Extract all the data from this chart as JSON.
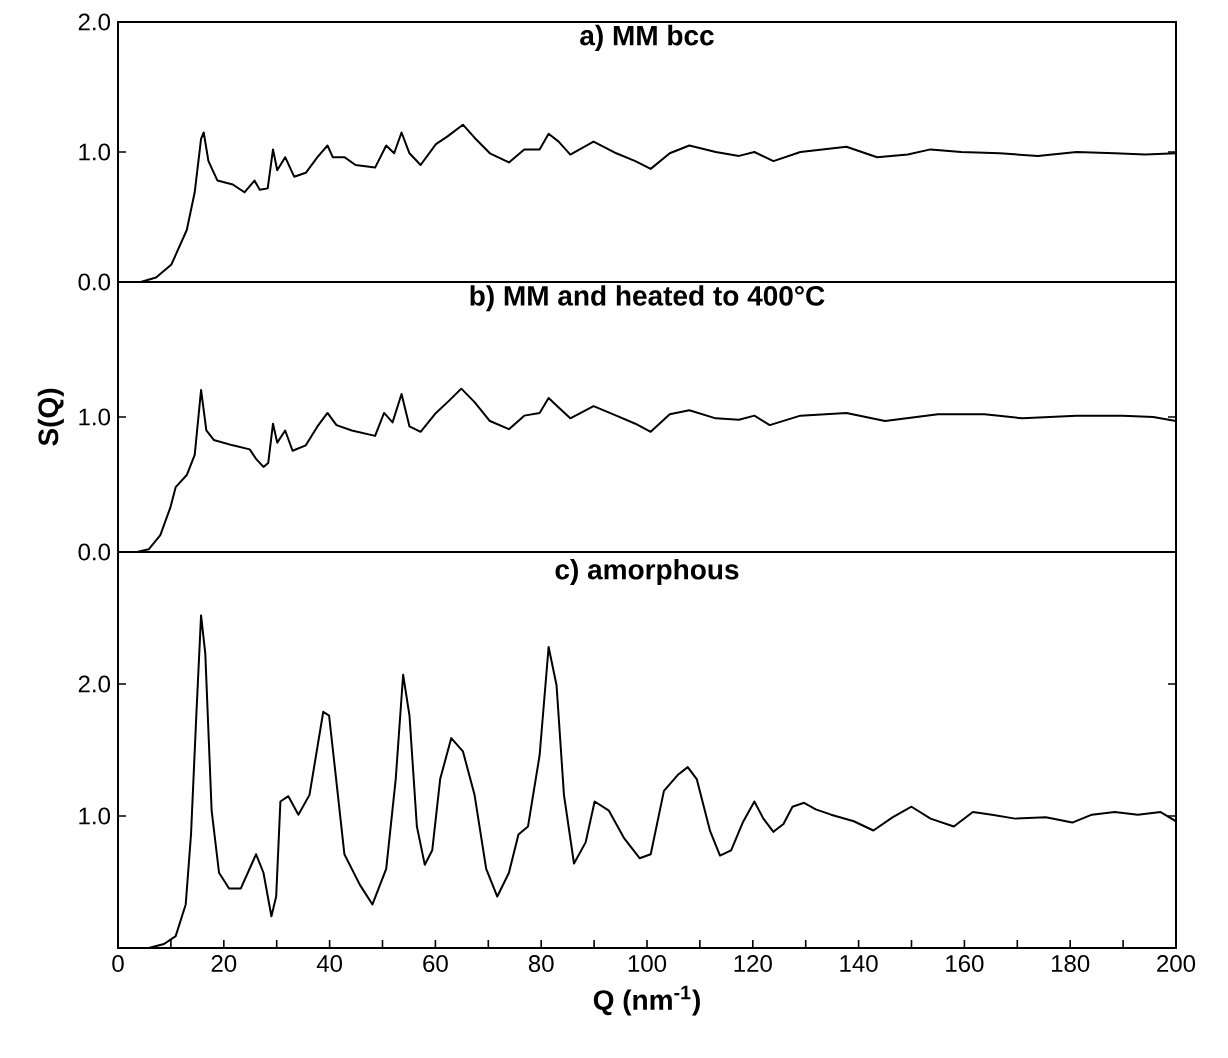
{
  "chart_data": [
    {
      "type": "line",
      "title": "a) MM bcc",
      "xlim": [
        0,
        200
      ],
      "ylim": [
        0,
        2
      ],
      "yticks": [
        {
          "value": 0,
          "label": "0.0"
        },
        {
          "value": 1,
          "label": "1.0"
        },
        {
          "value": 2,
          "label": "2.0"
        }
      ],
      "tick_labels": "y",
      "series": [
        {
          "color": "#000000",
          "x": [
            4.3,
            7.2,
            10.1,
            13,
            14.5,
            15.7,
            16.2,
            17.1,
            18.8,
            21.7,
            23.9,
            25.8,
            26.8,
            28.3,
            29.3,
            30.1,
            31.6,
            33.3,
            35.5,
            37.7,
            39.6,
            40.6,
            42.8,
            44.9,
            48.6,
            50.7,
            52.2,
            53.6,
            55.1,
            57.2,
            60.1,
            62.3,
            65.2,
            67.4,
            70.3,
            73.9,
            76.8,
            79.7,
            81.4,
            83.3,
            85.5,
            89.9,
            94.2,
            97.8,
            100.7,
            104.3,
            108,
            113,
            117.4,
            120.3,
            123.9,
            129,
            137.7,
            143.5,
            149.3,
            153.6,
            159.4,
            166.7,
            173.9,
            181.2,
            188.4,
            194.2,
            200
          ],
          "values": [
            0,
            0.035,
            0.135,
            0.4,
            0.69,
            1.1,
            1.15,
            0.93,
            0.78,
            0.75,
            0.69,
            0.78,
            0.71,
            0.72,
            1.02,
            0.86,
            0.96,
            0.81,
            0.84,
            0.96,
            1.05,
            0.96,
            0.96,
            0.9,
            0.88,
            1.05,
            0.99,
            1.15,
            0.99,
            0.9,
            1.06,
            1.12,
            1.21,
            1.11,
            0.99,
            0.92,
            1.02,
            1.02,
            1.14,
            1.08,
            0.98,
            1.08,
            0.99,
            0.93,
            0.87,
            0.99,
            1.05,
            1.0,
            0.97,
            1.0,
            0.93,
            1.0,
            1.04,
            0.96,
            0.98,
            1.02,
            1.0,
            0.99,
            0.97,
            1.0,
            0.99,
            0.98,
            0.99
          ]
        }
      ]
    },
    {
      "type": "line",
      "title": "b) MM and heated to 400°C",
      "ylabel": "S(Q)",
      "xlim": [
        0,
        200
      ],
      "ylim": [
        0,
        2
      ],
      "yticks": [
        {
          "value": 0,
          "label": "0.0"
        },
        {
          "value": 1,
          "label": "1.0"
        }
      ],
      "tick_labels": "y",
      "series": [
        {
          "color": "#000000",
          "x": [
            3.6,
            5.8,
            8,
            9.9,
            10.9,
            13,
            14.5,
            15.7,
            16.7,
            18.1,
            21.7,
            24.9,
            26.1,
            27.5,
            28.4,
            29.3,
            30.1,
            31.6,
            33,
            35.5,
            37.7,
            39.6,
            41.3,
            44.2,
            48.6,
            50.3,
            51.9,
            53.6,
            55.1,
            57.2,
            60.1,
            62.3,
            64.9,
            67.4,
            70.3,
            73.9,
            76.8,
            79.7,
            81.4,
            83.3,
            85.5,
            89.9,
            94.2,
            97.8,
            100.7,
            104.3,
            108,
            113,
            117.4,
            120.3,
            123.2,
            129,
            137.7,
            145,
            155,
            163.8,
            171,
            181.2,
            189.9,
            195.7,
            200
          ],
          "values": [
            0,
            0.02,
            0.125,
            0.33,
            0.48,
            0.57,
            0.72,
            1.2,
            0.9,
            0.83,
            0.79,
            0.76,
            0.69,
            0.63,
            0.66,
            0.95,
            0.81,
            0.9,
            0.75,
            0.79,
            0.93,
            1.03,
            0.94,
            0.9,
            0.86,
            1.03,
            0.96,
            1.17,
            0.93,
            0.89,
            1.03,
            1.11,
            1.21,
            1.11,
            0.97,
            0.91,
            1.01,
            1.03,
            1.14,
            1.07,
            0.99,
            1.08,
            1.01,
            0.95,
            0.89,
            1.02,
            1.05,
            0.99,
            0.98,
            1.01,
            0.94,
            1.01,
            1.03,
            0.97,
            1.02,
            1.02,
            0.99,
            1.01,
            1.01,
            1.0,
            0.97
          ]
        }
      ]
    },
    {
      "type": "line",
      "title": "c) amorphous",
      "xlabel": "Q (nm$^{-1}$)",
      "xlim": [
        0,
        200
      ],
      "ylim": [
        0,
        3
      ],
      "xticks": [
        0,
        {
          "value": 10,
          "label": null
        },
        20,
        {
          "value": 30,
          "label": null
        },
        40,
        {
          "value": 50,
          "label": null
        },
        60,
        {
          "value": 70,
          "label": null
        },
        80,
        {
          "value": 90,
          "label": null
        },
        100,
        {
          "value": 110,
          "label": null
        },
        120,
        {
          "value": 130,
          "label": null
        },
        140,
        {
          "value": 150,
          "label": null
        },
        160,
        {
          "value": 170,
          "label": null
        },
        180,
        {
          "value": 190,
          "label": null
        },
        200
      ],
      "yticks": [
        {
          "value": 1,
          "label": "1.0"
        },
        {
          "value": 2,
          "label": "2.0"
        }
      ],
      "series": [
        {
          "color": "#000000",
          "x": [
            5.8,
            8.7,
            10.9,
            12.8,
            13.8,
            14.8,
            15.7,
            16.5,
            17.7,
            19.1,
            21,
            23.2,
            26.1,
            27.5,
            29,
            29.9,
            30.7,
            32.2,
            34.1,
            36.2,
            38.8,
            39.9,
            40.9,
            42.8,
            45.7,
            48.1,
            50.7,
            52.5,
            53.9,
            55.1,
            56.5,
            58,
            59.4,
            60.9,
            63,
            65.2,
            67.4,
            69.6,
            71.7,
            73.9,
            75.7,
            77.5,
            79.7,
            81.4,
            82.9,
            84.3,
            86.2,
            88.4,
            90.1,
            92.8,
            95.7,
            98.6,
            100.7,
            103.2,
            105.8,
            107.7,
            109.4,
            111.9,
            113.8,
            115.9,
            118.1,
            120.3,
            122,
            123.9,
            125.8,
            127.5,
            129.7,
            131.9,
            134.8,
            139.1,
            142.8,
            146.4,
            150,
            153.6,
            158,
            161.6,
            165.2,
            169.6,
            175.4,
            180.4,
            184.1,
            188.4,
            192.8,
            197.1,
            200
          ],
          "values": [
            0,
            0.03,
            0.09,
            0.33,
            0.86,
            1.76,
            2.52,
            2.23,
            1.04,
            0.57,
            0.45,
            0.45,
            0.71,
            0.57,
            0.24,
            0.39,
            1.11,
            1.15,
            1.01,
            1.16,
            1.79,
            1.76,
            1.4,
            0.71,
            0.48,
            0.33,
            0.6,
            1.28,
            2.07,
            1.76,
            0.92,
            0.63,
            0.74,
            1.28,
            1.59,
            1.49,
            1.16,
            0.6,
            0.39,
            0.57,
            0.86,
            0.92,
            1.46,
            2.28,
            1.99,
            1.16,
            0.64,
            0.8,
            1.11,
            1.04,
            0.83,
            0.68,
            0.71,
            1.19,
            1.31,
            1.37,
            1.28,
            0.89,
            0.7,
            0.74,
            0.95,
            1.11,
            0.98,
            0.88,
            0.94,
            1.07,
            1.1,
            1.05,
            1.01,
            0.96,
            0.89,
            0.99,
            1.07,
            0.98,
            0.92,
            1.03,
            1.01,
            0.98,
            0.99,
            0.95,
            1.01,
            1.03,
            1.01,
            1.03,
            0.96
          ]
        }
      ]
    }
  ]
}
